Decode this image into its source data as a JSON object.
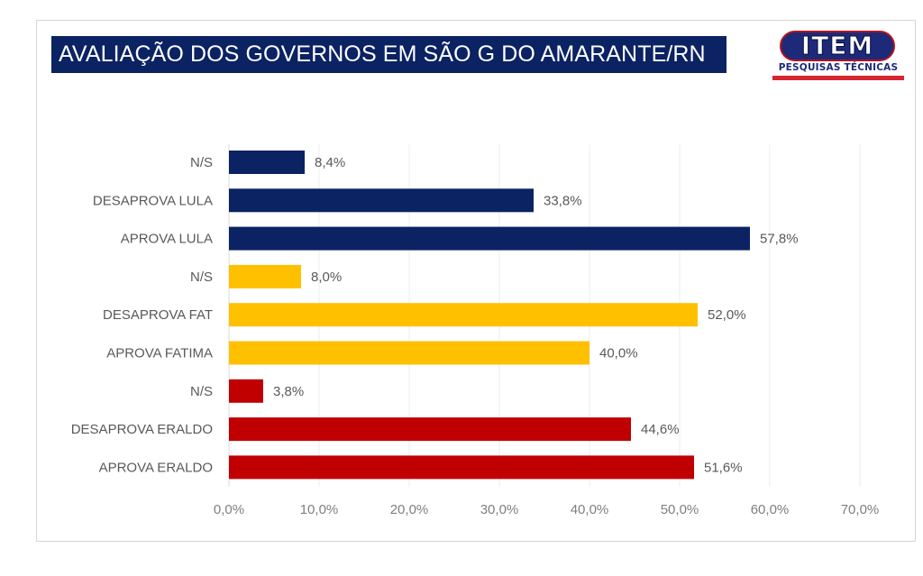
{
  "title": "AVALIAÇÃO DOS GOVERNOS EM SÃO G DO AMARANTE/RN",
  "logo": {
    "main": "ITEM",
    "sub": "PESQUISAS TÉCNICAS",
    "colors": {
      "pill": "#1d2a7a",
      "accent": "#d7262e"
    }
  },
  "chart_data": {
    "type": "bar",
    "orientation": "horizontal",
    "title": "AVALIAÇÃO DOS GOVERNOS EM SÃO G DO AMARANTE/RN",
    "xlabel": "",
    "ylabel": "",
    "xlim": [
      0,
      70
    ],
    "x_ticks": [
      0,
      10,
      20,
      30,
      40,
      50,
      60,
      70
    ],
    "x_tick_labels": [
      "0,0%",
      "10,0%",
      "20,0%",
      "30,0%",
      "40,0%",
      "50,0%",
      "60,0%",
      "70,0%"
    ],
    "grid": "vertical",
    "legend": "none",
    "bars": [
      {
        "category": "N/S",
        "value": 8.4,
        "label": "8,4%",
        "group": "Lula",
        "color": "#0b2263"
      },
      {
        "category": "DESAPROVA LULA",
        "value": 33.8,
        "label": "33,8%",
        "group": "Lula",
        "color": "#0b2263"
      },
      {
        "category": "APROVA LULA",
        "value": 57.8,
        "label": "57,8%",
        "group": "Lula",
        "color": "#0b2263"
      },
      {
        "category": "N/S",
        "value": 8.0,
        "label": "8,0%",
        "group": "Fatima",
        "color": "#ffc000"
      },
      {
        "category": "DESAPROVA FAT",
        "value": 52.0,
        "label": "52,0%",
        "group": "Fatima",
        "color": "#ffc000"
      },
      {
        "category": "APROVA FATIMA",
        "value": 40.0,
        "label": "40,0%",
        "group": "Fatima",
        "color": "#ffc000"
      },
      {
        "category": "N/S",
        "value": 3.8,
        "label": "3,8%",
        "group": "Eraldo",
        "color": "#c00000"
      },
      {
        "category": "DESAPROVA ERALDO",
        "value": 44.6,
        "label": "44,6%",
        "group": "Eraldo",
        "color": "#c00000"
      },
      {
        "category": "APROVA ERALDO",
        "value": 51.6,
        "label": "51,6%",
        "group": "Eraldo",
        "color": "#c00000"
      }
    ]
  }
}
